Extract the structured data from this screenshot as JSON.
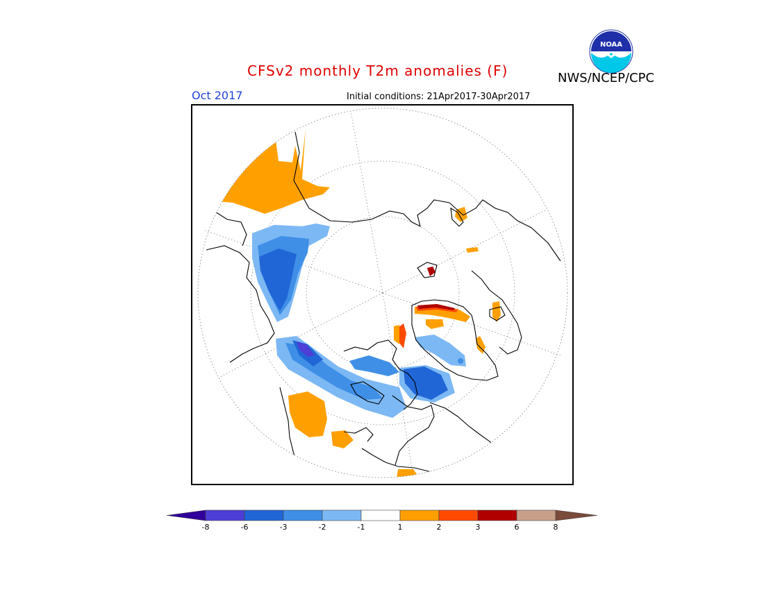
{
  "header": {
    "title": "CFSv2 monthly T2m anomalies (F)",
    "agency": "NWS/NCEP/CPC",
    "logo_text": "NOAA",
    "month": "Oct 2017",
    "initial_conditions": "Initial conditions: 21Apr2017-30Apr2017"
  },
  "map": {
    "projection": "north polar stereographic",
    "variable": "2m temperature anomaly",
    "units": "F"
  },
  "colorbar": {
    "ticks": [
      "-8",
      "-6",
      "-3",
      "-2",
      "-1",
      "1",
      "2",
      "3",
      "6",
      "8"
    ],
    "bins": [
      {
        "range": "< -8",
        "color": "#30009a"
      },
      {
        "range": "-8 to -6",
        "color": "#4c3ed6"
      },
      {
        "range": "-6 to -3",
        "color": "#2166d6"
      },
      {
        "range": "-3 to -2",
        "color": "#3f8fe6"
      },
      {
        "range": "-2 to -1",
        "color": "#7cb8f4"
      },
      {
        "range": "-1 to 1",
        "color": "#ffffff"
      },
      {
        "range": "1 to 2",
        "color": "#ffa000"
      },
      {
        "range": "2 to 3",
        "color": "#ff4a00"
      },
      {
        "range": "3 to 6",
        "color": "#b00000"
      },
      {
        "range": "6 to 8",
        "color": "#c8a08a"
      },
      {
        "range": "> 8",
        "color": "#7a4a3a"
      }
    ]
  }
}
